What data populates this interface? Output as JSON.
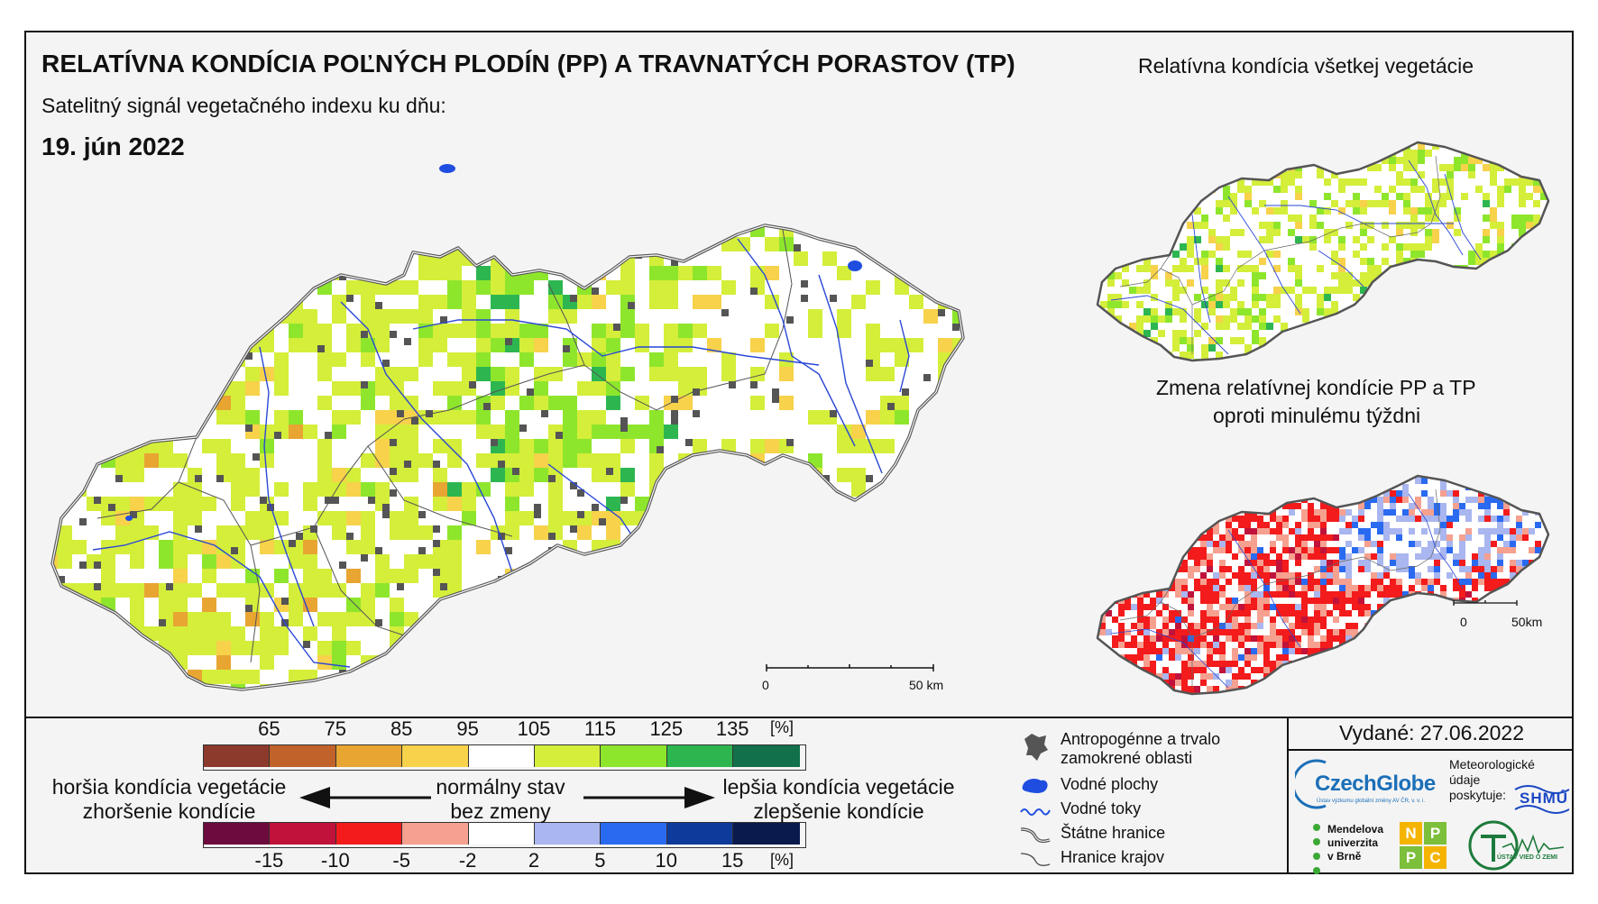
{
  "header": {
    "title": "RELATÍVNA KONDÍCIA POĽNÝCH PLODÍN (PP) A TRAVNATÝCH PORASTOV (TP)",
    "subtitle": "Satelitný signál vegetačného indexu ku dňu:",
    "date": "19. jún 2022"
  },
  "insets": {
    "all_vegetation_title": "Relatívna kondícia všetkej vegetácie",
    "change_title_line1": "Zmena relatívnej kondície PP a TP",
    "change_title_line2": "oproti minulému týždni"
  },
  "scalebars": {
    "main_start": "0",
    "main_end": "50 km",
    "inset_start": "0",
    "inset_end": "50km"
  },
  "legend": {
    "condition": {
      "ticks": [
        "65",
        "75",
        "85",
        "95",
        "105",
        "115",
        "125",
        "135"
      ],
      "unit": "[%]",
      "colors": [
        "#8b3a2c",
        "#c0622a",
        "#e8a532",
        "#f7d24a",
        "#ffffff",
        "#d4ee3a",
        "#8ee62c",
        "#2db650",
        "#12704a"
      ]
    },
    "change": {
      "ticks": [
        "-15",
        "-10",
        "-5",
        "-2",
        "2",
        "5",
        "10",
        "15"
      ],
      "unit": "[%]",
      "colors": [
        "#6d0b3e",
        "#c0123a",
        "#f31b1b",
        "#f6a090",
        "#ffffff",
        "#a9b6ef",
        "#2a6af0",
        "#0e3a9c",
        "#0a1a4d"
      ]
    },
    "worse_line1": "horšia kondícia vegetácie",
    "worse_line2": "zhoršenie kondície",
    "normal_line1": "normálny stav",
    "normal_line2": "bez zmeny",
    "better_line1": "lepšia kondícia vegetácie",
    "better_line2": "zlepšenie kondície"
  },
  "symbols": {
    "anthropogenic_line1": "Antropogénne a trvalo",
    "anthropogenic_line2": "zamokrené oblasti",
    "water_areas": "Vodné plochy",
    "water_courses": "Vodné toky",
    "state_border": "Štátne hranice",
    "regional_border": "Hranice krajov"
  },
  "footer": {
    "issued": "Vydané: 27.06.2022",
    "czechglobe": "CzechGlobe",
    "czechglobe_sub": "Ústav výzkumu globální změny AV ČR, v. v. i.",
    "met_line1": "Meteorologické",
    "met_line2": "údaje",
    "met_line3": "poskytuje:",
    "shmu": "SHMÚ",
    "mendel_line1": "Mendelova",
    "mendel_line2": "univerzita",
    "mendel_line3": "v Brně",
    "nppc_letters": [
      "N",
      "P",
      "P",
      "C"
    ],
    "uvz": "ÚSTAV VIED O ZEMI"
  }
}
